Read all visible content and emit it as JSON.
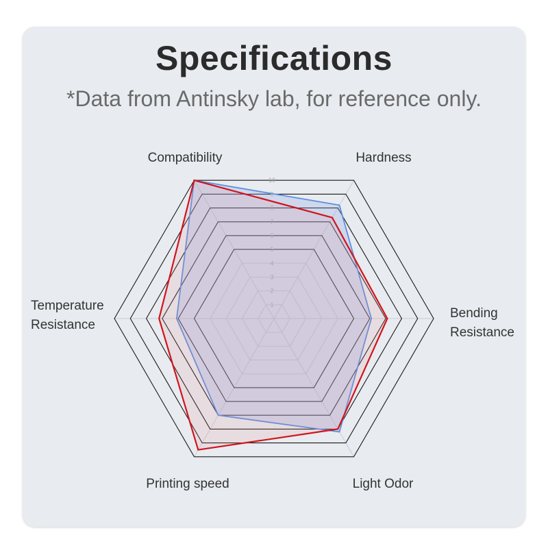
{
  "header": {
    "title": "Specifications",
    "subtitle": "*Data from Antinsky lab, for reference only."
  },
  "chart_data": {
    "type": "radar",
    "axes": [
      "Compatibility",
      "Hardness",
      "Bending Resistance",
      "Light Odor",
      "Printing speed",
      "Temperature Resistance"
    ],
    "axis_label_lines": [
      [
        "Compatibility"
      ],
      [
        "Hardness"
      ],
      [
        "Bending",
        "Resistance"
      ],
      [
        "Light Odor"
      ],
      [
        "Printing speed"
      ],
      [
        "Temperature",
        "Resistance"
      ]
    ],
    "range": [
      0,
      10
    ],
    "ticks": [
      1,
      2,
      3,
      4,
      5,
      6,
      7,
      8,
      9,
      10
    ],
    "series": [
      {
        "values": [
          10,
          8.2,
          6.1,
          8.2,
          7.0,
          6.1
        ],
        "color": "#5b8fde",
        "fill": "rgba(140,165,225,0.28)"
      },
      {
        "values": [
          10,
          7.3,
          7.1,
          8.0,
          9.5,
          7.2
        ],
        "color": "#d0141d",
        "fill": "rgba(230,140,150,0.16)"
      }
    ],
    "grid": true,
    "legend": "none"
  },
  "colors": {
    "card_background": "#e8ebef",
    "grid_line": "#1a1a1a",
    "inner_grid_line": "#c9cdd4"
  }
}
